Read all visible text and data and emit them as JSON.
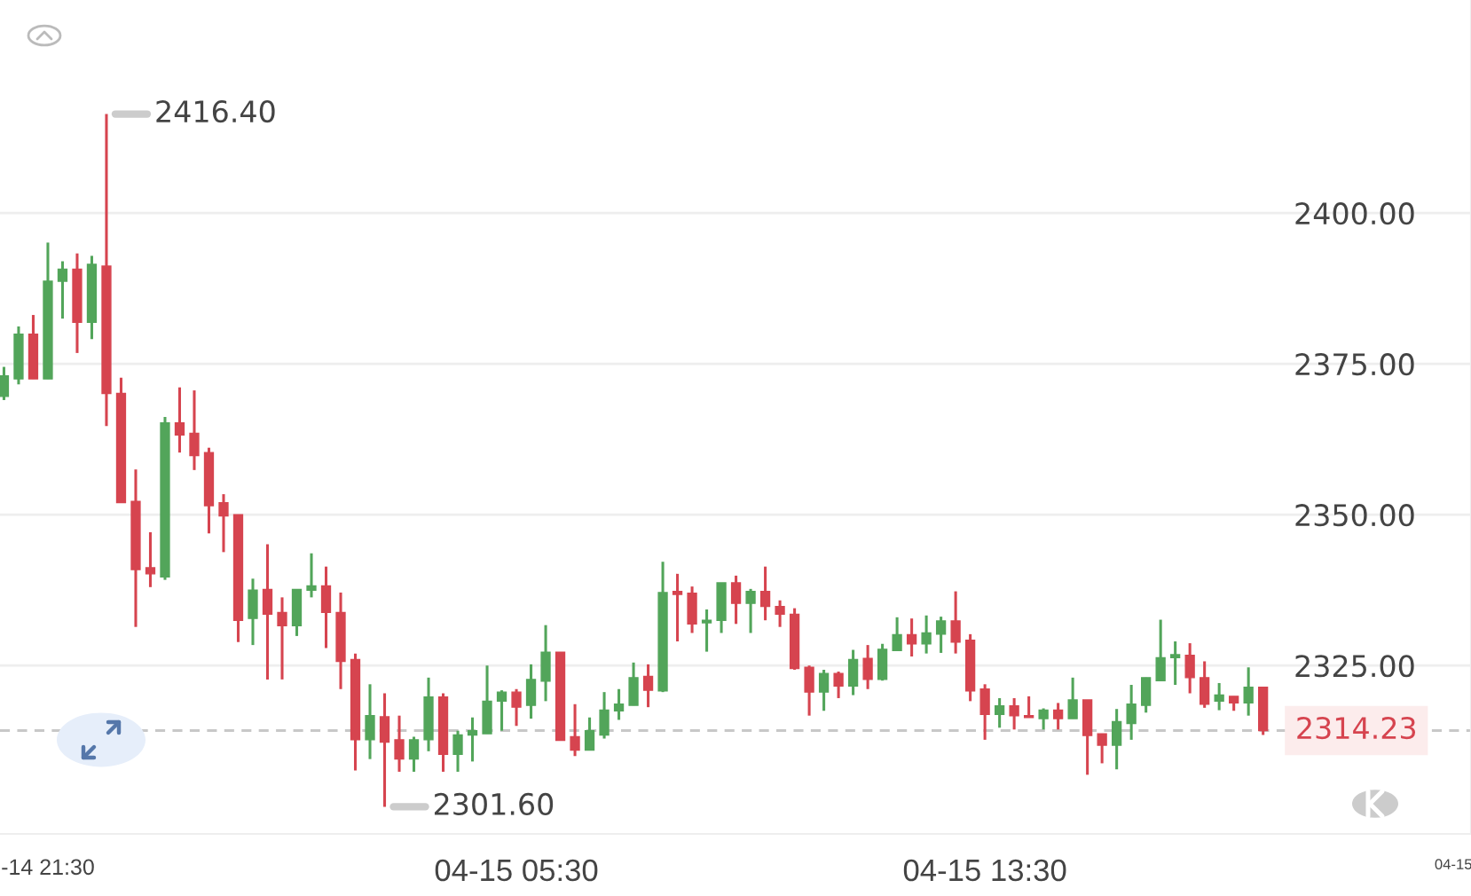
{
  "chart_data": {
    "type": "candlestick",
    "categories": [
      null,
      null,
      null,
      "-14 21:30",
      null,
      null,
      null,
      null,
      null,
      null,
      null,
      null,
      null,
      null,
      null,
      null,
      null,
      null,
      null,
      null,
      null,
      null,
      null,
      null,
      null,
      null,
      null,
      null,
      null,
      null,
      null,
      null,
      null,
      null,
      null,
      "04-15 05:30",
      null,
      null,
      null,
      null,
      null,
      null,
      null,
      null,
      null,
      null,
      null,
      null,
      null,
      null,
      null,
      null,
      null,
      null,
      null,
      null,
      null,
      null,
      null,
      null,
      null,
      null,
      null,
      null,
      null,
      null,
      null,
      "04-15 13:30",
      null,
      null,
      null,
      null,
      null,
      null,
      null,
      null,
      null,
      null,
      null,
      null,
      null,
      null,
      null,
      null,
      null,
      null,
      null,
      null,
      null,
      null,
      null,
      null,
      null,
      null,
      null,
      null,
      null,
      null,
      null,
      "04-15"
    ],
    "ohlc": [
      [
        2369.6,
        2374.5,
        2369.0,
        2373.0
      ],
      [
        2372.5,
        2381.2,
        2371.6,
        2379.9
      ],
      [
        2379.9,
        2383.1,
        2372.5,
        2372.5
      ],
      [
        2372.5,
        2395.1,
        2372.5,
        2388.7
      ],
      [
        2388.7,
        2392.0,
        2382.5,
        2390.7
      ],
      [
        2390.7,
        2393.3,
        2376.8,
        2381.9
      ],
      [
        2381.9,
        2392.9,
        2379.1,
        2391.5
      ],
      [
        2391.2,
        2416.4,
        2364.7,
        2370.1
      ],
      [
        2370.1,
        2372.7,
        2352.0,
        2352.0
      ],
      [
        2352.2,
        2357.5,
        2331.4,
        2340.9
      ],
      [
        2341.2,
        2347.1,
        2338.0,
        2340.2
      ],
      [
        2339.7,
        2366.2,
        2339.2,
        2365.2
      ],
      [
        2365.2,
        2371.1,
        2360.3,
        2363.2
      ],
      [
        2363.5,
        2370.6,
        2357.4,
        2359.8
      ],
      [
        2360.3,
        2361.1,
        2346.9,
        2351.5
      ],
      [
        2352.0,
        2353.4,
        2343.8,
        2349.8
      ],
      [
        2350.0,
        2350.0,
        2328.9,
        2332.5
      ],
      [
        2332.8,
        2339.4,
        2328.4,
        2337.5
      ],
      [
        2337.6,
        2345.1,
        2322.7,
        2333.5
      ],
      [
        2333.8,
        2336.3,
        2322.7,
        2331.6
      ],
      [
        2331.6,
        2337.6,
        2329.9,
        2337.6
      ],
      [
        2337.5,
        2343.6,
        2336.3,
        2338.2
      ],
      [
        2338.2,
        2341.4,
        2327.9,
        2333.8
      ],
      [
        2333.8,
        2337.1,
        2321.1,
        2325.7
      ],
      [
        2326.0,
        2327.0,
        2307.6,
        2312.7
      ],
      [
        2312.7,
        2321.9,
        2309.5,
        2316.7
      ],
      [
        2316.5,
        2320.4,
        2301.6,
        2312.3
      ],
      [
        2312.7,
        2316.7,
        2307.4,
        2309.5
      ],
      [
        2309.5,
        2313.2,
        2307.4,
        2312.7
      ],
      [
        2312.7,
        2323.0,
        2310.8,
        2319.8
      ],
      [
        2319.8,
        2320.4,
        2307.4,
        2310.3
      ],
      [
        2310.3,
        2314.2,
        2307.4,
        2313.5
      ],
      [
        2313.5,
        2316.4,
        2309.1,
        2314.2
      ],
      [
        2313.7,
        2325.0,
        2313.7,
        2319.1
      ],
      [
        2319.1,
        2320.9,
        2314.2,
        2320.6
      ],
      [
        2320.6,
        2321.1,
        2315.0,
        2318.1
      ],
      [
        2318.4,
        2325.2,
        2316.2,
        2322.7
      ],
      [
        2322.4,
        2331.7,
        2319.1,
        2327.2
      ],
      [
        2327.2,
        2327.2,
        2312.6,
        2312.6
      ],
      [
        2313.2,
        2318.6,
        2310.0,
        2311.0
      ],
      [
        2311.0,
        2316.4,
        2311.0,
        2314.2
      ],
      [
        2313.5,
        2320.6,
        2312.9,
        2317.6
      ],
      [
        2317.5,
        2321.1,
        2316.0,
        2318.6
      ],
      [
        2318.4,
        2325.5,
        2318.4,
        2323.0
      ],
      [
        2323.2,
        2325.2,
        2318.1,
        2320.9
      ],
      [
        2320.8,
        2342.2,
        2320.6,
        2337.1
      ],
      [
        2337.3,
        2340.2,
        2329.0,
        2336.8
      ],
      [
        2337.0,
        2338.1,
        2330.4,
        2331.9
      ],
      [
        2332.1,
        2334.3,
        2327.3,
        2332.5
      ],
      [
        2332.5,
        2338.7,
        2330.4,
        2338.7
      ],
      [
        2338.7,
        2339.9,
        2331.9,
        2335.3
      ],
      [
        2335.3,
        2337.7,
        2330.4,
        2337.3
      ],
      [
        2337.3,
        2341.4,
        2332.5,
        2334.8
      ],
      [
        2334.8,
        2335.8,
        2331.4,
        2333.5
      ],
      [
        2333.5,
        2334.5,
        2324.3,
        2324.5
      ],
      [
        2324.7,
        2325.0,
        2316.7,
        2320.6
      ],
      [
        2320.6,
        2324.3,
        2317.5,
        2323.7
      ],
      [
        2323.7,
        2324.0,
        2319.6,
        2321.6
      ],
      [
        2321.6,
        2327.6,
        2320.1,
        2326.0
      ],
      [
        2326.2,
        2328.4,
        2321.1,
        2322.7
      ],
      [
        2322.7,
        2328.6,
        2322.5,
        2327.7
      ],
      [
        2327.5,
        2333.0,
        2327.5,
        2330.1
      ],
      [
        2330.1,
        2332.8,
        2326.5,
        2328.6
      ],
      [
        2328.6,
        2333.3,
        2327.0,
        2330.4
      ],
      [
        2330.2,
        2333.1,
        2327.1,
        2332.4
      ],
      [
        2332.4,
        2337.3,
        2327.0,
        2328.9
      ],
      [
        2329.2,
        2330.2,
        2319.1,
        2320.8
      ],
      [
        2321.1,
        2321.9,
        2312.7,
        2316.9
      ],
      [
        2316.9,
        2319.6,
        2314.7,
        2318.3
      ],
      [
        2318.3,
        2319.6,
        2314.4,
        2316.7
      ],
      [
        2316.7,
        2319.9,
        2316.4,
        2316.4
      ],
      [
        2316.2,
        2317.9,
        2314.4,
        2317.6
      ],
      [
        2317.6,
        2318.8,
        2314.4,
        2316.2
      ],
      [
        2316.2,
        2323.0,
        2316.2,
        2319.3
      ],
      [
        2319.3,
        2319.3,
        2306.9,
        2313.4
      ],
      [
        2313.7,
        2313.7,
        2308.8,
        2311.8
      ],
      [
        2311.8,
        2317.8,
        2307.8,
        2315.7
      ],
      [
        2315.4,
        2321.8,
        2312.7,
        2318.6
      ],
      [
        2318.4,
        2323.0,
        2317.2,
        2323.0
      ],
      [
        2322.5,
        2332.6,
        2322.5,
        2326.3
      ],
      [
        2326.3,
        2329.0,
        2321.8,
        2326.8
      ],
      [
        2326.7,
        2328.7,
        2320.4,
        2323.0
      ],
      [
        2323.0,
        2325.7,
        2318.0,
        2318.6
      ],
      [
        2319.1,
        2322.1,
        2317.6,
        2320.1
      ],
      [
        2319.9,
        2319.9,
        2317.5,
        2318.8
      ],
      [
        2318.8,
        2324.7,
        2316.7,
        2321.4
      ],
      [
        2321.4,
        2321.4,
        2313.5,
        2314.23
      ],
      null,
      null,
      null,
      null,
      null,
      null,
      null,
      null,
      null,
      null,
      null,
      null,
      null
    ],
    "colors": [
      "#52a55a",
      "#52a55a",
      "#d6444f",
      "#52a55a",
      "#52a55a",
      "#d6444f",
      "#52a55a",
      "#d6444f",
      "#d6444f",
      "#d6444f",
      "#d6444f",
      "#52a55a",
      "#d6444f",
      "#d6444f",
      "#d6444f",
      "#d6444f",
      "#d6444f",
      "#52a55a",
      "#d6444f",
      "#d6444f",
      "#52a55a",
      "#52a55a",
      "#d6444f",
      "#d6444f",
      "#d6444f",
      "#52a55a",
      "#d6444f",
      "#d6444f",
      "#52a55a",
      "#52a55a",
      "#d6444f",
      "#52a55a",
      "#52a55a",
      "#52a55a",
      "#52a55a",
      "#d6444f",
      "#52a55a",
      "#52a55a",
      "#d6444f",
      "#d6444f",
      "#52a55a",
      "#52a55a",
      "#52a55a",
      "#52a55a",
      "#d6444f",
      "#52a55a",
      "#d6444f",
      "#d6444f",
      "#52a55a",
      "#52a55a",
      "#d6444f",
      "#52a55a",
      "#d6444f",
      "#d6444f",
      "#d6444f",
      "#d6444f",
      "#52a55a",
      "#d6444f",
      "#52a55a",
      "#d6444f",
      "#52a55a",
      "#52a55a",
      "#d6444f",
      "#52a55a",
      "#52a55a",
      "#d6444f",
      "#d6444f",
      "#d6444f",
      "#52a55a",
      "#d6444f",
      "#d6444f",
      "#52a55a",
      "#d6444f",
      "#52a55a",
      "#d6444f",
      "#d6444f",
      "#52a55a",
      "#52a55a",
      "#52a55a",
      "#52a55a",
      "#52a55a",
      "#d6444f",
      "#d6444f",
      "#52a55a",
      "#d6444f",
      "#52a55a",
      "#d6444f",
      null,
      null,
      null,
      null,
      null,
      null,
      null,
      null,
      null,
      null,
      null,
      null,
      null
    ],
    "ylim": [
      2297.1,
      2435.3
    ],
    "yticks": [
      {
        "value": 2325,
        "label": "2325.00"
      },
      {
        "value": 2350,
        "label": "2350.00"
      },
      {
        "value": 2375,
        "label": "2375.00"
      },
      {
        "value": 2400,
        "label": "2400.00"
      }
    ],
    "grid": "y",
    "ref_lines": [
      {
        "axis": "y",
        "value": 2314.23,
        "label": "2314.23",
        "color": "#c8c8c8",
        "line_style": "dashed"
      }
    ],
    "annotations": [
      "2416.40",
      "2301.60"
    ]
  }
}
